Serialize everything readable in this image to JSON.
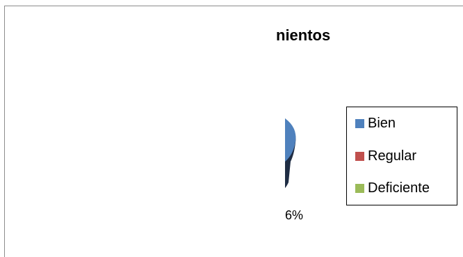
{
  "chart_data": {
    "type": "pie",
    "title": "nientos",
    "data_labels": [
      "6%"
    ],
    "legend": {
      "placement": "right",
      "entries": [
        {
          "name": "Bien",
          "color": "#4f81bd"
        },
        {
          "name": "Regular",
          "color": "#c0504d"
        },
        {
          "name": "Deficiente",
          "color": "#9bbb59"
        }
      ]
    }
  }
}
